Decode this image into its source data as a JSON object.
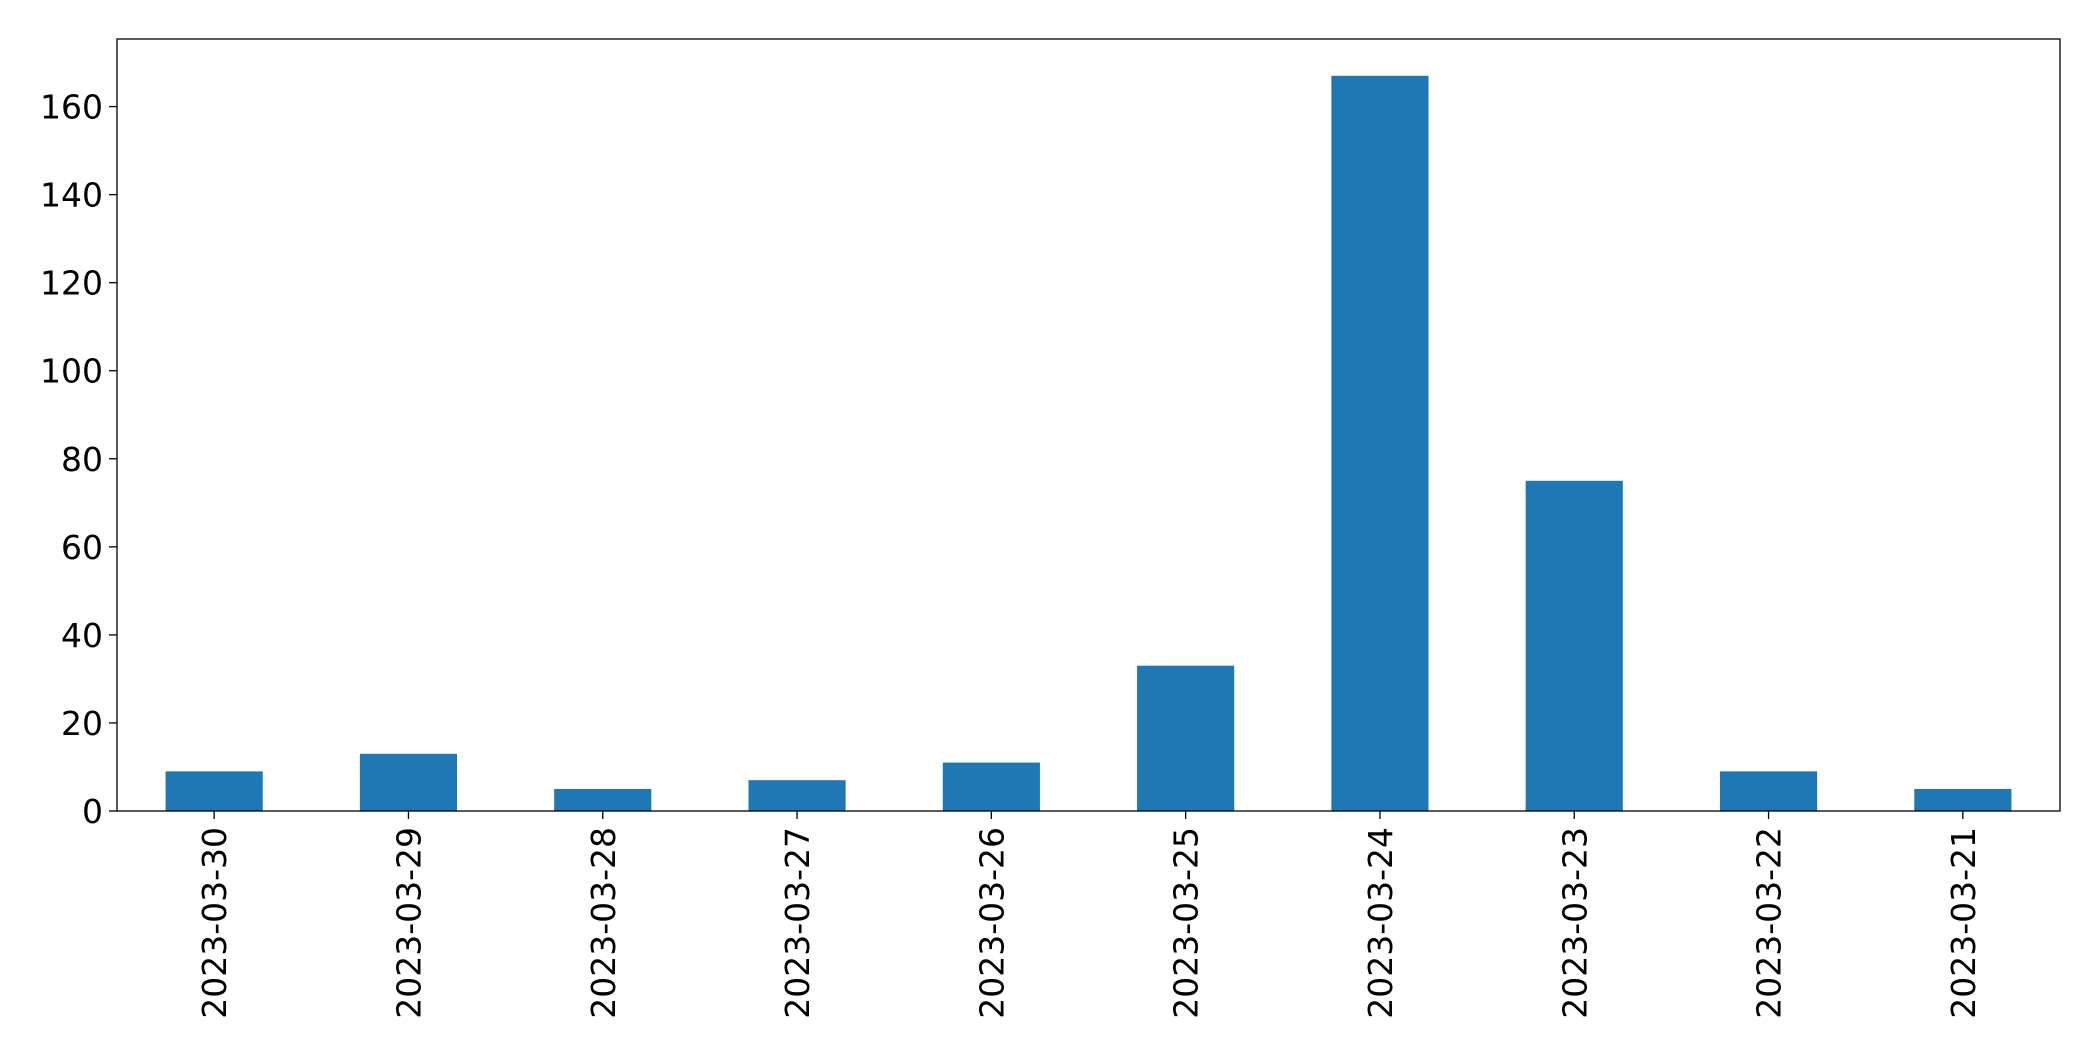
{
  "chart_data": {
    "type": "bar",
    "title": "",
    "xlabel": "",
    "ylabel": "",
    "categories": [
      "2023-03-30",
      "2023-03-29",
      "2023-03-28",
      "2023-03-27",
      "2023-03-26",
      "2023-03-25",
      "2023-03-24",
      "2023-03-23",
      "2023-03-22",
      "2023-03-21"
    ],
    "values": [
      9,
      13,
      5,
      7,
      11,
      33,
      167,
      75,
      9,
      5
    ],
    "ylim": [
      0,
      175.35
    ],
    "yticks": [
      "0",
      "20",
      "40",
      "60",
      "80",
      "100",
      "120",
      "140",
      "160"
    ],
    "bar_color": "#1f77b4",
    "grid": false,
    "legend": "none"
  }
}
